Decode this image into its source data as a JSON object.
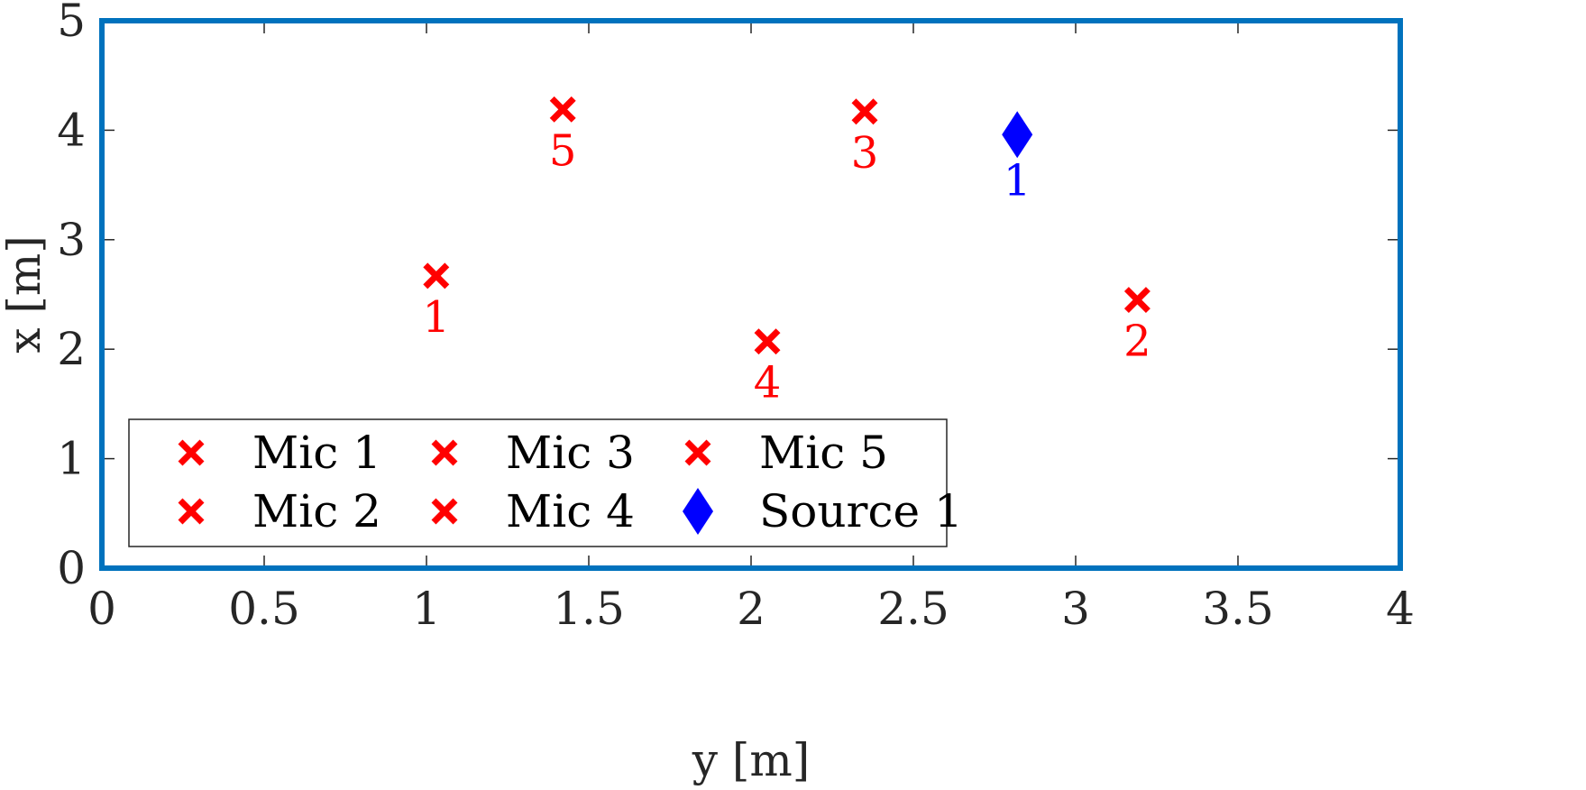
{
  "chart_data": {
    "type": "scatter",
    "title": "",
    "xlabel": "y [m]",
    "ylabel": "x [m]",
    "xlim": [
      0,
      4
    ],
    "ylim": [
      0,
      5
    ],
    "xticks": [
      0,
      0.5,
      1,
      1.5,
      2,
      2.5,
      3,
      3.5,
      4
    ],
    "xtick_labels": [
      "0",
      "0.5",
      "1",
      "1.5",
      "2",
      "2.5",
      "3",
      "3.5",
      "4"
    ],
    "yticks": [
      0,
      1,
      2,
      3,
      4,
      5
    ],
    "ytick_labels": [
      "0",
      "1",
      "2",
      "3",
      "4",
      "5"
    ],
    "grid": false,
    "legend_position": "bottom-left",
    "series": [
      {
        "name": "Mic 1",
        "marker": "x",
        "color": "#ff0000",
        "x": 1.03,
        "y": 2.67,
        "label": "1"
      },
      {
        "name": "Mic 2",
        "marker": "x",
        "color": "#ff0000",
        "x": 3.19,
        "y": 2.45,
        "label": "2"
      },
      {
        "name": "Mic 3",
        "marker": "x",
        "color": "#ff0000",
        "x": 2.35,
        "y": 4.17,
        "label": "3"
      },
      {
        "name": "Mic 4",
        "marker": "x",
        "color": "#ff0000",
        "x": 2.05,
        "y": 2.07,
        "label": "4"
      },
      {
        "name": "Mic 5",
        "marker": "x",
        "color": "#ff0000",
        "x": 1.42,
        "y": 4.19,
        "label": "5"
      },
      {
        "name": "Source 1",
        "marker": "diamond",
        "color": "#0000ff",
        "x": 2.82,
        "y": 3.96,
        "label": "1"
      }
    ],
    "legend_order": [
      "Mic 1",
      "Mic 3",
      "Mic 5",
      "Mic 2",
      "Mic 4",
      "Source 1"
    ],
    "axes_box_color": "#0072bd",
    "text_color": "#262626"
  }
}
